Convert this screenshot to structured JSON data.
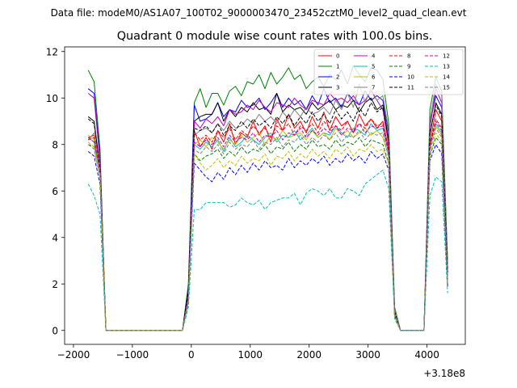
{
  "figure": {
    "suptitle": "Data file: modeM0/AS1A07_100T02_9000003470_23452cztM0_level2_quad_clean.evt",
    "offset_label": "+3.18e8"
  },
  "chart_data": {
    "type": "line",
    "title": "Quadrant 0 module wise count rates with 100.0s bins.",
    "xlabel": "",
    "ylabel": "",
    "x_offset": 318000000,
    "xlim": [
      -2150,
      4650
    ],
    "ylim": [
      -0.6,
      12.2
    ],
    "xticks": [
      -2000,
      -1000,
      0,
      1000,
      2000,
      3000,
      4000
    ],
    "xtick_labels": [
      "−2000",
      "−1000",
      "0",
      "1000",
      "2000",
      "3000",
      "4000"
    ],
    "yticks": [
      0,
      2,
      4,
      6,
      8,
      10,
      12
    ],
    "legend_position": "top-right",
    "grid": false,
    "x": [
      -1750,
      -1650,
      -1550,
      -1450,
      -1350,
      -1250,
      -1150,
      -1050,
      -950,
      -850,
      -750,
      -650,
      -550,
      -450,
      -350,
      -250,
      -150,
      -50,
      50,
      150,
      250,
      350,
      450,
      550,
      650,
      750,
      850,
      950,
      1050,
      1150,
      1250,
      1350,
      1450,
      1550,
      1650,
      1750,
      1850,
      1950,
      2050,
      2150,
      2250,
      2350,
      2450,
      2550,
      2650,
      2750,
      2850,
      2950,
      3050,
      3150,
      3250,
      3350,
      3450,
      3550,
      3650,
      3750,
      3850,
      3950,
      4050,
      4150,
      4250,
      4350
    ],
    "series": [
      {
        "name": "0",
        "color": "#ff0000",
        "dash": false,
        "values": [
          8.3,
          8.4,
          7.2,
          0,
          0,
          0,
          0,
          0,
          0,
          0,
          0,
          0,
          0,
          0,
          0,
          0,
          0,
          1.5,
          8.6,
          7.9,
          8.3,
          7.8,
          8.6,
          8.1,
          8.9,
          8.0,
          8.5,
          8.3,
          9.0,
          8.4,
          8.8,
          8.1,
          9.1,
          8.6,
          9.3,
          8.7,
          9.0,
          8.5,
          9.2,
          8.7,
          9.4,
          8.6,
          9.2,
          8.8,
          9.0,
          8.5,
          9.3,
          8.8,
          9.1,
          8.7,
          9.0,
          7.8,
          0.7,
          0,
          0,
          0,
          0,
          0,
          8.0,
          9.5,
          9.0,
          2.5
        ]
      },
      {
        "name": "1",
        "color": "#008000",
        "dash": false,
        "values": [
          11.2,
          10.7,
          7.8,
          0,
          0,
          0,
          0,
          0,
          0,
          0,
          0,
          0,
          0,
          0,
          0,
          0,
          0,
          2.0,
          9.8,
          10.4,
          9.6,
          10.2,
          10.2,
          9.7,
          10.3,
          10.5,
          10.1,
          10.7,
          10.6,
          11.0,
          10.4,
          11.1,
          10.6,
          10.9,
          11.3,
          10.8,
          11.0,
          10.4,
          10.7,
          10.9,
          10.5,
          11.0,
          10.8,
          11.2,
          10.6,
          11.4,
          11.0,
          10.7,
          11.3,
          11.2,
          10.8,
          8.9,
          1.0,
          0,
          0,
          0,
          0,
          0,
          9.5,
          10.9,
          10.3,
          3.0
        ]
      },
      {
        "name": "2",
        "color": "#0000ff",
        "dash": false,
        "values": [
          10.4,
          10.2,
          7.5,
          0,
          0,
          0,
          0,
          0,
          0,
          0,
          0,
          0,
          0,
          0,
          0,
          0,
          0,
          1.8,
          9.7,
          9.0,
          9.1,
          9.3,
          9.8,
          9.2,
          9.5,
          9.4,
          9.9,
          9.6,
          9.7,
          10.0,
          9.5,
          9.8,
          10.2,
          9.6,
          10.0,
          9.7,
          9.9,
          9.5,
          10.1,
          9.7,
          10.4,
          9.8,
          10.0,
          9.6,
          10.2,
          9.9,
          9.7,
          10.3,
          9.9,
          10.1,
          9.9,
          8.5,
          0.8,
          0,
          0,
          0,
          0,
          0,
          8.9,
          10.1,
          9.6,
          2.7
        ]
      },
      {
        "name": "3",
        "color": "#000000",
        "dash": false,
        "values": [
          9.2,
          9.0,
          7.0,
          0,
          0,
          0,
          0,
          0,
          0,
          0,
          0,
          0,
          0,
          0,
          0,
          0,
          0,
          1.7,
          9.0,
          9.2,
          9.3,
          9.3,
          9.8,
          9.0,
          9.5,
          9.2,
          9.6,
          9.4,
          9.8,
          9.5,
          9.6,
          9.3,
          10.2,
          9.4,
          9.7,
          9.5,
          9.6,
          9.3,
          9.8,
          9.5,
          9.7,
          9.9,
          9.5,
          9.7,
          9.6,
          9.9,
          9.4,
          9.8,
          10.0,
          9.5,
          9.7,
          8.2,
          0.8,
          0,
          0,
          0,
          0,
          0,
          8.4,
          9.8,
          9.3,
          2.5
        ]
      },
      {
        "name": "4",
        "color": "#c000c0",
        "dash": false,
        "values": [
          10.2,
          10.0,
          7.3,
          0,
          0,
          0,
          0,
          0,
          0,
          0,
          0,
          0,
          0,
          0,
          0,
          0,
          0,
          1.6,
          9.0,
          8.7,
          9.1,
          8.9,
          9.2,
          8.8,
          9.5,
          9.3,
          9.4,
          9.7,
          9.5,
          9.9,
          9.6,
          9.4,
          9.8,
          9.7,
          9.6,
          10.0,
          9.7,
          9.5,
          9.9,
          9.8,
          9.7,
          10.2,
          9.9,
          10.0,
          9.8,
          10.1,
          9.7,
          9.9,
          10.3,
          9.9,
          9.5,
          8.0,
          0.8,
          0,
          0,
          0,
          0,
          0,
          8.7,
          10.4,
          9.8,
          2.5
        ]
      },
      {
        "name": "5",
        "color": "#00c0c0",
        "dash": false,
        "values": [
          8.3,
          8.1,
          6.9,
          0,
          0,
          0,
          0,
          0,
          0,
          0,
          0,
          0,
          0,
          0,
          0,
          0,
          0,
          1.4,
          8.0,
          7.8,
          8.1,
          7.9,
          8.2,
          7.7,
          8.3,
          7.9,
          8.1,
          8.4,
          8.2,
          8.0,
          8.3,
          8.5,
          8.1,
          8.4,
          8.3,
          8.6,
          8.2,
          8.4,
          8.7,
          8.3,
          8.5,
          8.4,
          8.8,
          8.5,
          8.3,
          8.7,
          8.6,
          8.4,
          8.9,
          8.6,
          8.7,
          7.6,
          0.7,
          0,
          0,
          0,
          0,
          0,
          7.8,
          8.9,
          8.5,
          2.2
        ]
      },
      {
        "name": "6",
        "color": "#bfbf00",
        "dash": false,
        "values": [
          8.4,
          8.2,
          7.0,
          0,
          0,
          0,
          0,
          0,
          0,
          0,
          0,
          0,
          0,
          0,
          0,
          0,
          0,
          1.4,
          8.0,
          8.2,
          7.9,
          8.3,
          8.1,
          7.8,
          8.2,
          8.0,
          8.4,
          8.1,
          8.3,
          8.5,
          8.0,
          8.4,
          8.2,
          8.6,
          8.3,
          8.4,
          8.5,
          8.2,
          8.6,
          8.3,
          8.5,
          8.2,
          8.7,
          8.4,
          8.6,
          8.3,
          8.5,
          8.7,
          8.4,
          8.6,
          8.3,
          7.5,
          0.7,
          0,
          0,
          0,
          0,
          0,
          7.9,
          8.8,
          8.4,
          2.2
        ]
      },
      {
        "name": "7",
        "color": "#808080",
        "dash": false,
        "values": [
          8.2,
          8.5,
          7.1,
          0,
          0,
          0,
          0,
          0,
          0,
          0,
          0,
          0,
          0,
          0,
          0,
          0,
          0,
          1.5,
          8.4,
          8.6,
          8.7,
          8.5,
          8.9,
          8.6,
          9.0,
          8.7,
          8.8,
          9.1,
          8.9,
          9.3,
          9.0,
          9.2,
          8.9,
          9.4,
          9.1,
          9.5,
          9.2,
          9.6,
          9.3,
          9.4,
          9.6,
          9.3,
          9.9,
          9.5,
          10.2,
          9.6,
          10.6,
          9.8,
          10.4,
          9.9,
          10.1,
          8.6,
          0.9,
          0,
          0,
          0,
          0,
          0,
          9.0,
          10.6,
          10.1,
          2.7
        ]
      },
      {
        "name": "8",
        "color": "#ff0000",
        "dash": true,
        "values": [
          8.2,
          8.3,
          6.8,
          0,
          0,
          0,
          0,
          0,
          0,
          0,
          0,
          0,
          0,
          0,
          0,
          0,
          0,
          1.5,
          8.5,
          8.2,
          8.4,
          8.1,
          8.6,
          8.3,
          8.7,
          8.2,
          8.6,
          8.4,
          8.8,
          8.5,
          8.7,
          8.3,
          8.8,
          8.6,
          8.9,
          8.4,
          8.8,
          8.6,
          8.9,
          8.5,
          9.0,
          8.7,
          8.8,
          8.6,
          9.0,
          8.5,
          8.9,
          8.7,
          9.1,
          8.8,
          8.9,
          7.7,
          0.7,
          0,
          0,
          0,
          0,
          0,
          8.0,
          9.1,
          8.7,
          2.3
        ]
      },
      {
        "name": "9",
        "color": "#008000",
        "dash": true,
        "values": [
          8.0,
          7.9,
          6.6,
          0,
          0,
          0,
          0,
          0,
          0,
          0,
          0,
          0,
          0,
          0,
          0,
          0,
          0,
          1.3,
          7.6,
          7.3,
          7.5,
          7.6,
          7.8,
          7.4,
          7.7,
          7.5,
          7.9,
          7.6,
          7.8,
          7.7,
          8.0,
          7.6,
          7.9,
          7.8,
          8.1,
          7.7,
          8.0,
          7.8,
          8.2,
          7.9,
          8.0,
          7.8,
          8.2,
          7.9,
          8.1,
          8.0,
          8.3,
          7.9,
          8.2,
          8.1,
          8.0,
          7.2,
          0.6,
          0,
          0,
          0,
          0,
          0,
          7.5,
          8.3,
          8.0,
          2.0
        ]
      },
      {
        "name": "10",
        "color": "#0000ff",
        "dash": true,
        "values": [
          7.7,
          7.5,
          6.3,
          0,
          0,
          0,
          0,
          0,
          0,
          0,
          0,
          0,
          0,
          0,
          0,
          0,
          0,
          1.2,
          7.2,
          6.9,
          6.6,
          6.4,
          6.8,
          6.5,
          7.0,
          6.7,
          7.1,
          6.8,
          7.2,
          6.9,
          7.3,
          7.0,
          7.1,
          6.9,
          7.4,
          7.0,
          7.3,
          7.1,
          7.4,
          7.2,
          7.5,
          7.1,
          7.4,
          7.2,
          7.6,
          7.3,
          7.5,
          7.2,
          7.7,
          7.4,
          7.6,
          6.9,
          0.6,
          0,
          0,
          0,
          0,
          0,
          7.3,
          8.0,
          7.6,
          1.9
        ]
      },
      {
        "name": "11",
        "color": "#000000",
        "dash": true,
        "values": [
          9.1,
          8.9,
          7.0,
          0,
          0,
          0,
          0,
          0,
          0,
          0,
          0,
          0,
          0,
          0,
          0,
          0,
          0,
          1.6,
          8.7,
          8.6,
          8.8,
          8.5,
          8.9,
          8.4,
          8.8,
          8.6,
          9.0,
          8.7,
          9.1,
          8.8,
          9.0,
          8.7,
          9.2,
          8.9,
          9.3,
          8.8,
          9.2,
          8.9,
          9.4,
          9.0,
          9.3,
          8.9,
          9.5,
          9.1,
          9.4,
          9.0,
          9.6,
          9.2,
          9.8,
          9.4,
          9.6,
          8.1,
          0.8,
          0,
          0,
          0,
          0,
          0,
          8.5,
          9.7,
          9.2,
          2.5
        ]
      },
      {
        "name": "12",
        "color": "#c000c0",
        "dash": true,
        "values": [
          8.3,
          8.1,
          6.9,
          0,
          0,
          0,
          0,
          0,
          0,
          0,
          0,
          0,
          0,
          0,
          0,
          0,
          0,
          1.4,
          8.1,
          7.9,
          8.2,
          8.0,
          8.3,
          7.9,
          8.4,
          8.1,
          8.3,
          8.2,
          8.5,
          8.1,
          8.4,
          8.3,
          8.6,
          8.2,
          8.5,
          8.4,
          8.7,
          8.3,
          8.6,
          8.4,
          8.7,
          8.5,
          8.8,
          8.4,
          8.7,
          8.6,
          8.9,
          8.5,
          8.8,
          8.7,
          8.8,
          7.6,
          0.7,
          0,
          0,
          0,
          0,
          0,
          7.9,
          9.0,
          8.6,
          2.2
        ]
      },
      {
        "name": "13",
        "color": "#00c0c0",
        "dash": true,
        "values": [
          6.3,
          5.8,
          5.0,
          0,
          0,
          0,
          0,
          0,
          0,
          0,
          0,
          0,
          0,
          0,
          0,
          0,
          0,
          1.0,
          5.2,
          5.2,
          5.5,
          5.5,
          5.5,
          5.5,
          5.3,
          5.4,
          5.7,
          5.5,
          5.4,
          5.6,
          5.2,
          5.5,
          5.6,
          5.7,
          5.7,
          5.9,
          5.4,
          5.9,
          6.1,
          6.0,
          5.8,
          6.1,
          5.7,
          5.7,
          6.1,
          6.0,
          5.8,
          6.3,
          6.5,
          6.7,
          6.9,
          6.1,
          0.5,
          0,
          0,
          0,
          0,
          0,
          5.8,
          6.6,
          6.4,
          1.6
        ]
      },
      {
        "name": "14",
        "color": "#bfbf00",
        "dash": true,
        "values": [
          8.1,
          7.9,
          6.7,
          0,
          0,
          0,
          0,
          0,
          0,
          0,
          0,
          0,
          0,
          0,
          0,
          0,
          0,
          1.3,
          7.6,
          7.2,
          6.9,
          7.1,
          7.4,
          7.0,
          7.3,
          7.1,
          7.5,
          7.2,
          7.4,
          7.3,
          7.6,
          7.1,
          7.5,
          7.4,
          7.7,
          7.3,
          7.6,
          7.4,
          7.8,
          7.5,
          7.7,
          7.4,
          7.8,
          7.6,
          7.9,
          7.5,
          7.8,
          7.7,
          8.0,
          7.7,
          7.8,
          7.2,
          0.6,
          0,
          0,
          0,
          0,
          0,
          7.5,
          8.5,
          8.1,
          2.0
        ]
      },
      {
        "name": "15",
        "color": "#808080",
        "dash": true,
        "values": [
          8.0,
          7.8,
          6.6,
          0,
          0,
          0,
          0,
          0,
          0,
          0,
          0,
          0,
          0,
          0,
          0,
          0,
          0,
          1.3,
          7.8,
          7.6,
          7.9,
          7.7,
          8.0,
          7.6,
          8.1,
          7.8,
          8.0,
          7.9,
          8.2,
          7.8,
          8.1,
          8.0,
          8.3,
          7.9,
          8.2,
          8.1,
          8.4,
          8.0,
          8.3,
          8.1,
          8.4,
          8.2,
          8.5,
          8.1,
          8.4,
          8.3,
          8.6,
          8.2,
          8.5,
          8.4,
          8.5,
          7.4,
          0.7,
          0,
          0,
          0,
          0,
          0,
          7.7,
          8.7,
          8.3,
          2.1
        ]
      }
    ]
  }
}
